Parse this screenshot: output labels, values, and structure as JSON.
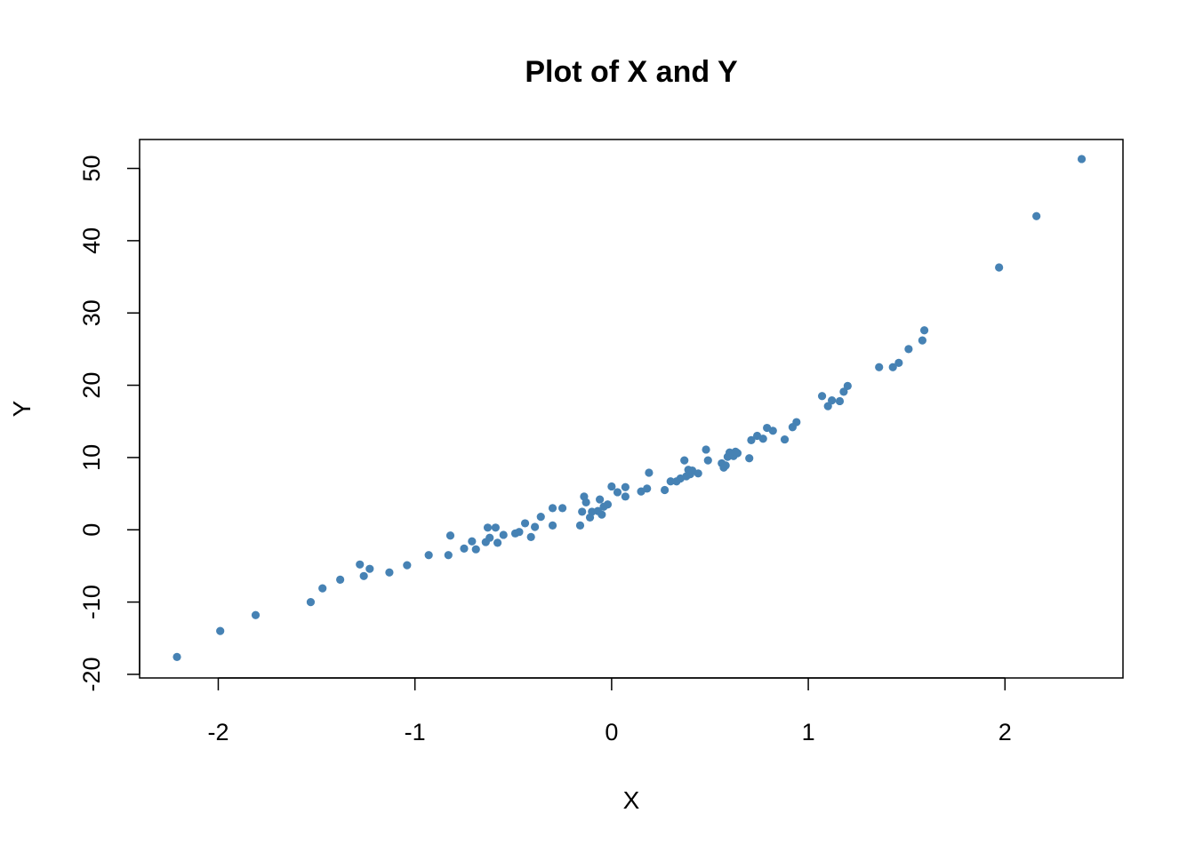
{
  "chart_data": {
    "type": "scatter",
    "title": "Plot of X and Y",
    "xlabel": "X",
    "ylabel": "Y",
    "xlim": [
      -2.4,
      2.6
    ],
    "ylim": [
      -20.5,
      54
    ],
    "xticks": [
      -2,
      -1,
      0,
      1,
      2
    ],
    "xtick_labels": [
      "-2",
      "-1",
      "0",
      "1",
      "2"
    ],
    "yticks": [
      -20,
      -10,
      0,
      10,
      20,
      30,
      40,
      50
    ],
    "ytick_labels": [
      "-20",
      "-10",
      "0",
      "10",
      "20",
      "30",
      "40",
      "50"
    ],
    "grid": false,
    "point_color": "#4682B4",
    "points": [
      [
        -2.21,
        -17.6
      ],
      [
        -1.99,
        -14.0
      ],
      [
        -1.81,
        -11.8
      ],
      [
        -1.53,
        -10.0
      ],
      [
        -1.47,
        -8.1
      ],
      [
        -1.38,
        -6.9
      ],
      [
        -1.28,
        -4.8
      ],
      [
        -1.26,
        -6.4
      ],
      [
        -1.23,
        -5.4
      ],
      [
        -1.13,
        -5.9
      ],
      [
        -1.04,
        -4.9
      ],
      [
        -0.93,
        -3.5
      ],
      [
        -0.83,
        -3.5
      ],
      [
        -0.82,
        -0.8
      ],
      [
        -0.75,
        -2.6
      ],
      [
        -0.71,
        -1.6
      ],
      [
        -0.69,
        -2.7
      ],
      [
        -0.64,
        -1.7
      ],
      [
        -0.63,
        0.3
      ],
      [
        -0.62,
        -1.1
      ],
      [
        -0.59,
        0.3
      ],
      [
        -0.58,
        -1.8
      ],
      [
        -0.55,
        -0.7
      ],
      [
        -0.49,
        -0.5
      ],
      [
        -0.47,
        -0.3
      ],
      [
        -0.44,
        0.9
      ],
      [
        -0.41,
        -1.0
      ],
      [
        -0.39,
        0.4
      ],
      [
        -0.36,
        1.8
      ],
      [
        -0.3,
        0.6
      ],
      [
        -0.3,
        3.0
      ],
      [
        -0.25,
        3.0
      ],
      [
        -0.16,
        0.6
      ],
      [
        -0.15,
        2.5
      ],
      [
        -0.14,
        4.6
      ],
      [
        -0.13,
        3.8
      ],
      [
        -0.11,
        1.7
      ],
      [
        -0.1,
        2.5
      ],
      [
        -0.07,
        2.6
      ],
      [
        -0.06,
        4.2
      ],
      [
        -0.05,
        2.1
      ],
      [
        -0.04,
        3.2
      ],
      [
        -0.02,
        3.5
      ],
      [
        0.0,
        6.0
      ],
      [
        0.03,
        5.2
      ],
      [
        0.07,
        5.9
      ],
      [
        0.07,
        4.6
      ],
      [
        0.15,
        5.3
      ],
      [
        0.18,
        5.7
      ],
      [
        0.19,
        7.9
      ],
      [
        0.27,
        5.5
      ],
      [
        0.3,
        6.7
      ],
      [
        0.33,
        6.7
      ],
      [
        0.35,
        7.1
      ],
      [
        0.37,
        9.6
      ],
      [
        0.38,
        7.4
      ],
      [
        0.39,
        8.3
      ],
      [
        0.4,
        7.7
      ],
      [
        0.41,
        8.2
      ],
      [
        0.44,
        7.8
      ],
      [
        0.48,
        11.1
      ],
      [
        0.49,
        9.6
      ],
      [
        0.56,
        9.2
      ],
      [
        0.57,
        8.6
      ],
      [
        0.58,
        8.9
      ],
      [
        0.59,
        10.1
      ],
      [
        0.6,
        10.7
      ],
      [
        0.62,
        10.2
      ],
      [
        0.63,
        10.8
      ],
      [
        0.64,
        10.6
      ],
      [
        0.7,
        9.9
      ],
      [
        0.71,
        12.4
      ],
      [
        0.74,
        13.0
      ],
      [
        0.77,
        12.6
      ],
      [
        0.79,
        14.1
      ],
      [
        0.82,
        13.7
      ],
      [
        0.88,
        12.5
      ],
      [
        0.92,
        14.2
      ],
      [
        0.94,
        14.9
      ],
      [
        1.07,
        18.5
      ],
      [
        1.1,
        17.1
      ],
      [
        1.12,
        17.9
      ],
      [
        1.16,
        17.8
      ],
      [
        1.18,
        19.1
      ],
      [
        1.2,
        19.9
      ],
      [
        1.36,
        22.5
      ],
      [
        1.43,
        22.5
      ],
      [
        1.46,
        23.1
      ],
      [
        1.51,
        25.0
      ],
      [
        1.58,
        26.2
      ],
      [
        1.59,
        27.6
      ],
      [
        1.97,
        36.3
      ],
      [
        2.16,
        43.4
      ],
      [
        2.39,
        51.3
      ]
    ]
  }
}
